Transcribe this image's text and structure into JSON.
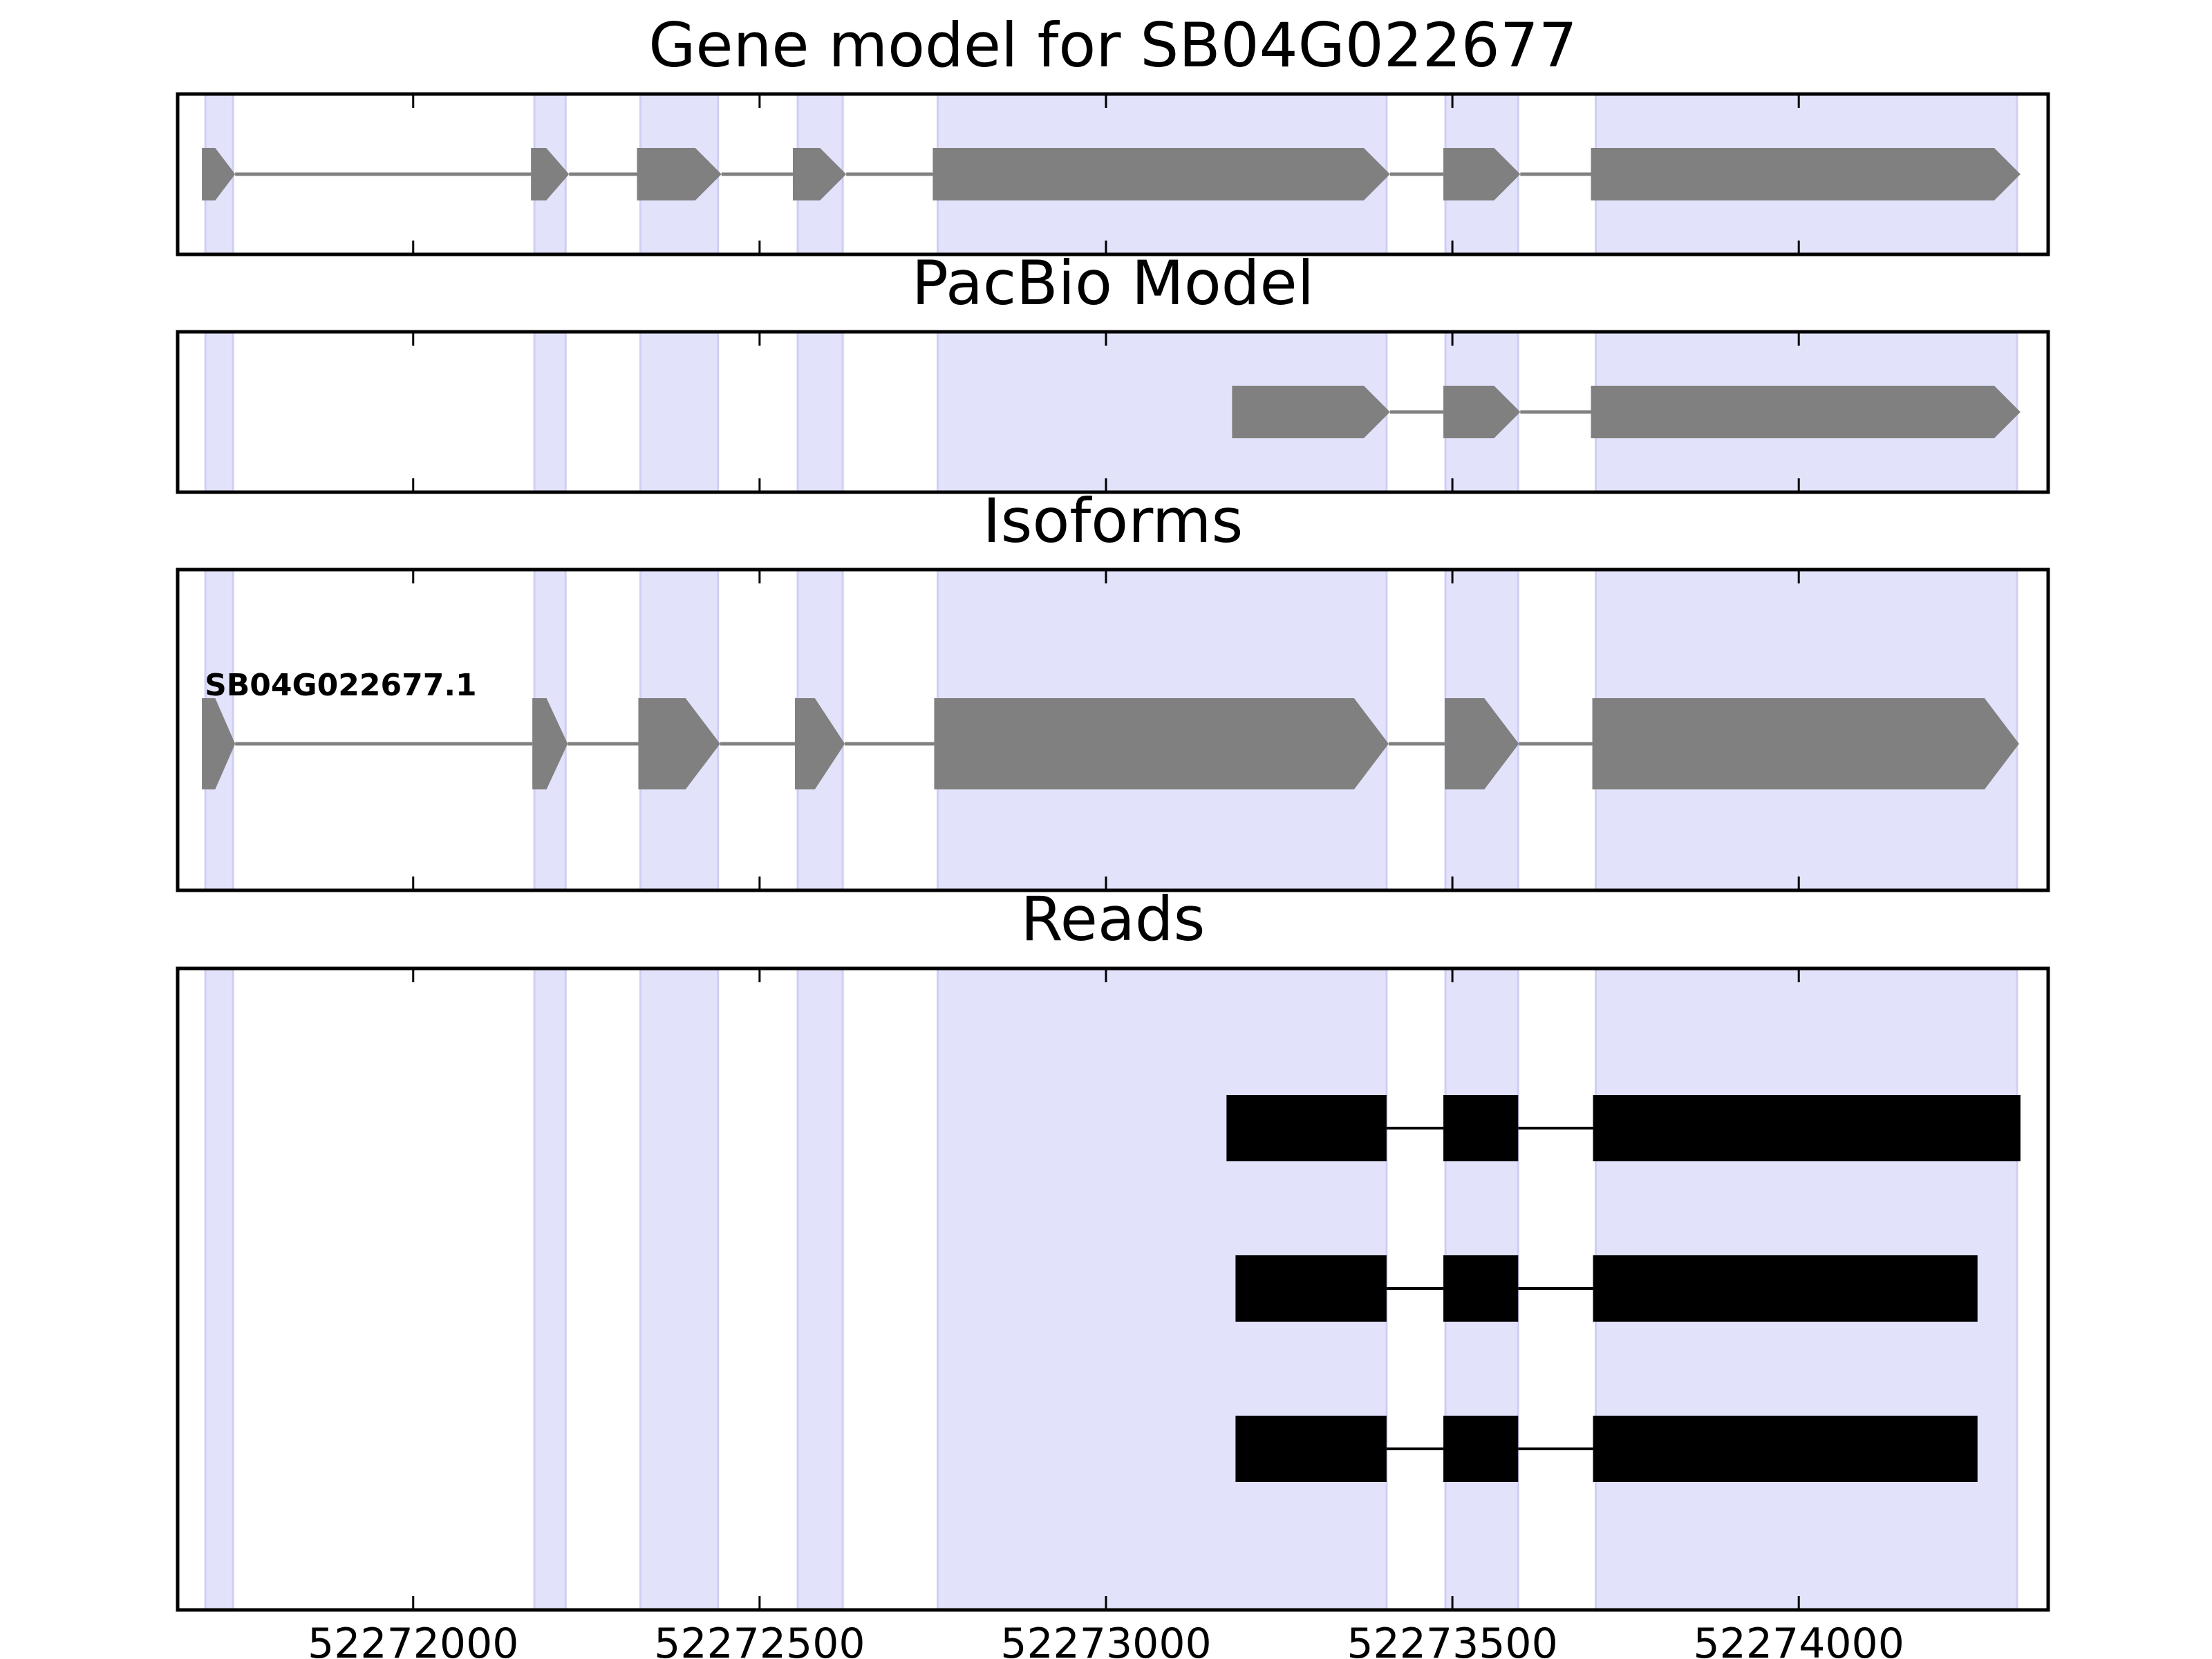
{
  "chart_data": {
    "type": "gene-structure",
    "xlim": [
      52271660,
      52274360
    ],
    "xticks": [
      52272000,
      52272500,
      52273000,
      52273500,
      52274000
    ],
    "xtick_labels": [
      "52272000",
      "52272500",
      "52273000",
      "52273500",
      "52274000"
    ],
    "highlight_color": "#e2e2fb",
    "highlight_regions": [
      [
        52271700,
        52271740
      ],
      [
        52272175,
        52272220
      ],
      [
        52272328,
        52272440
      ],
      [
        52272555,
        52272620
      ],
      [
        52272757,
        52273405
      ],
      [
        52273490,
        52273595
      ],
      [
        52273707,
        52274315
      ]
    ],
    "panels": [
      {
        "title": "Gene model for SB04G022677",
        "feature_color": "#808080",
        "strand": "+",
        "models": [
          {
            "label": "",
            "exons": [
              [
                52271695,
                52271743
              ],
              [
                52272170,
                52272225
              ],
              [
                52272323,
                52272445
              ],
              [
                52272548,
                52272625
              ],
              [
                52272750,
                52273410
              ],
              [
                52273487,
                52273598
              ],
              [
                52273700,
                52274320
              ]
            ]
          }
        ]
      },
      {
        "title": "PacBio Model",
        "feature_color": "#808080",
        "strand": "+",
        "models": [
          {
            "label": "",
            "exons": [
              [
                52273182,
                52273410
              ],
              [
                52273487,
                52273598
              ],
              [
                52273700,
                52274320
              ]
            ]
          }
        ]
      },
      {
        "title": "Isoforms",
        "feature_color": "#808080",
        "strand": "+",
        "models": [
          {
            "label": "SB04G022677.1",
            "exons": [
              [
                52271695,
                52271743
              ],
              [
                52272172,
                52272223
              ],
              [
                52272325,
                52272443
              ],
              [
                52272551,
                52272623
              ],
              [
                52272752,
                52273408
              ],
              [
                52273489,
                52273596
              ],
              [
                52273702,
                52274318
              ]
            ]
          }
        ]
      },
      {
        "title": "Reads",
        "feature_color": "#000000",
        "strand": "",
        "models": [
          {
            "label": "",
            "exons": [
              [
                52273174,
                52273405
              ],
              [
                52273487,
                52273595
              ],
              [
                52273703,
                52274320
              ]
            ]
          },
          {
            "label": "",
            "exons": [
              [
                52273187,
                52273405
              ],
              [
                52273487,
                52273595
              ],
              [
                52273703,
                52274258
              ]
            ]
          },
          {
            "label": "",
            "exons": [
              [
                52273187,
                52273405
              ],
              [
                52273487,
                52273595
              ],
              [
                52273703,
                52274258
              ]
            ]
          }
        ]
      }
    ]
  }
}
